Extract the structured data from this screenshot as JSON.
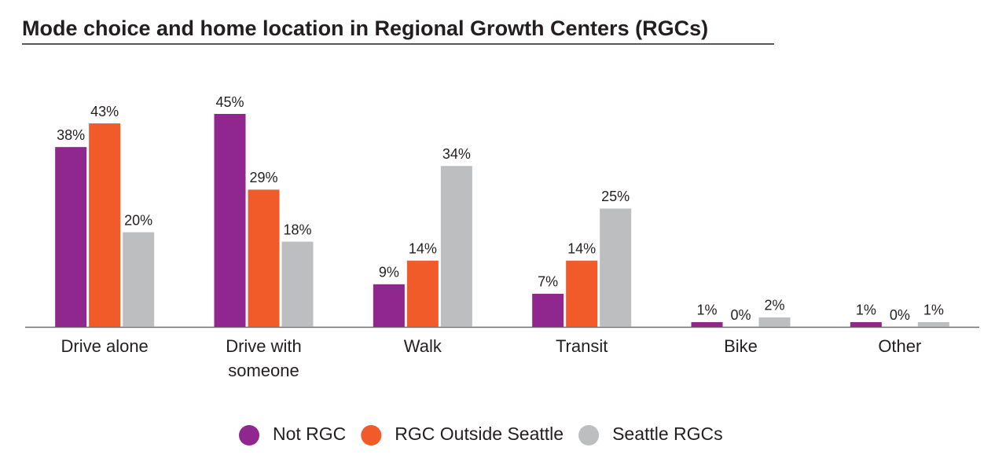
{
  "chart_data": {
    "type": "bar",
    "title": "Mode choice and home location in Regional Growth Centers (RGCs)",
    "categories": [
      "Drive alone",
      "Drive with someone",
      "Walk",
      "Transit",
      "Bike",
      "Other"
    ],
    "series": [
      {
        "name": "Not RGC",
        "color": "#90278e",
        "values": [
          38,
          45,
          9,
          7,
          1,
          1
        ],
        "value_labels": [
          "38%",
          "45%",
          "9%",
          "7%",
          "1%",
          "1%"
        ]
      },
      {
        "name": "RGC Outside Seattle",
        "color": "#f15a29",
        "values": [
          43,
          29,
          14,
          14,
          0,
          0
        ],
        "value_labels": [
          "43%",
          "29%",
          "14%",
          "14%",
          "0%",
          "0%"
        ]
      },
      {
        "name": "Seattle RGCs",
        "color": "#bcbec0",
        "values": [
          20,
          18,
          34,
          25,
          2,
          1
        ],
        "value_labels": [
          "20%",
          "18%",
          "34%",
          "25%",
          "2%",
          "1%"
        ]
      }
    ],
    "legend": "bottom"
  }
}
